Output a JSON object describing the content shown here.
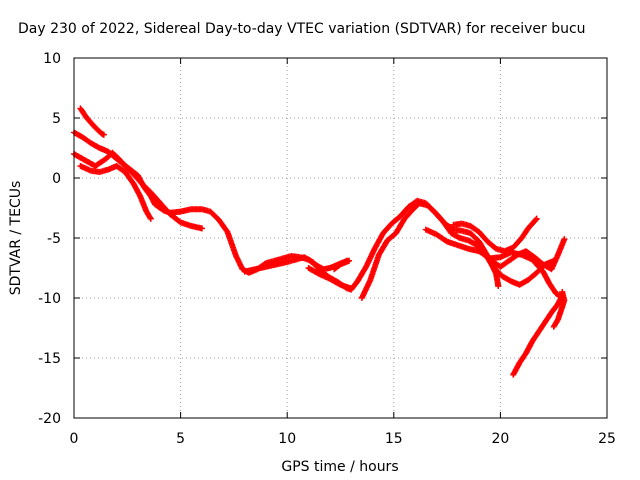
{
  "chart_data": {
    "type": "scatter",
    "title": "Day 230 of 2022, Sidereal Day-to-day VTEC variation (SDTVAR) for receiver bucu",
    "xlabel": "GPS time / hours",
    "ylabel": "SDTVAR / TECUs",
    "xlim": [
      0,
      25
    ],
    "ylim": [
      -20,
      10
    ],
    "xticks": [
      0,
      5,
      10,
      15,
      20,
      25
    ],
    "yticks": [
      10,
      5,
      0,
      -5,
      -10,
      -15,
      -20
    ],
    "grid": true,
    "grid_style": "dotted",
    "marker": "cross",
    "color": "#ff0000",
    "series": [
      {
        "name": "track-1",
        "points": [
          [
            0.3,
            5.8
          ],
          [
            0.6,
            5.0
          ],
          [
            1.0,
            4.2
          ],
          [
            1.3,
            3.7
          ],
          [
            1.4,
            3.6
          ]
        ]
      },
      {
        "name": "track-2",
        "points": [
          [
            0.0,
            3.8
          ],
          [
            0.4,
            3.4
          ],
          [
            0.8,
            2.9
          ],
          [
            1.2,
            2.5
          ],
          [
            1.6,
            2.2
          ],
          [
            2.0,
            1.6
          ],
          [
            2.5,
            0.9
          ],
          [
            3.0,
            0.2
          ],
          [
            3.3,
            -0.8
          ],
          [
            3.6,
            -1.5
          ],
          [
            3.8,
            -2.2
          ],
          [
            4.2,
            -2.7
          ],
          [
            4.5,
            -2.9
          ],
          [
            5.0,
            -2.8
          ],
          [
            5.5,
            -2.6
          ],
          [
            6.0,
            -2.6
          ],
          [
            6.4,
            -2.8
          ],
          [
            6.8,
            -3.5
          ],
          [
            7.2,
            -4.5
          ],
          [
            7.6,
            -6.5
          ],
          [
            7.9,
            -7.6
          ],
          [
            8.2,
            -7.9
          ],
          [
            8.6,
            -7.6
          ],
          [
            9.0,
            -7.1
          ],
          [
            9.4,
            -6.9
          ],
          [
            9.8,
            -6.7
          ],
          [
            10.2,
            -6.5
          ],
          [
            10.6,
            -6.6
          ],
          [
            11.0,
            -6.8
          ],
          [
            11.3,
            -7.2
          ],
          [
            11.7,
            -7.6
          ],
          [
            12.0,
            -7.5
          ],
          [
            12.4,
            -7.2
          ],
          [
            12.8,
            -6.9
          ]
        ]
      },
      {
        "name": "track-3",
        "points": [
          [
            0.0,
            2.0
          ],
          [
            0.5,
            1.5
          ],
          [
            1.0,
            1.0
          ],
          [
            1.5,
            1.6
          ],
          [
            1.8,
            2.1
          ],
          [
            2.1,
            1.6
          ],
          [
            2.4,
            1.0
          ],
          [
            2.8,
            0.3
          ],
          [
            3.2,
            -0.5
          ],
          [
            3.6,
            -1.2
          ],
          [
            4.0,
            -2.0
          ],
          [
            4.5,
            -3.0
          ],
          [
            5.0,
            -3.7
          ],
          [
            5.5,
            -4.0
          ],
          [
            6.0,
            -4.2
          ]
        ]
      },
      {
        "name": "track-4",
        "points": [
          [
            0.3,
            1.0
          ],
          [
            0.8,
            0.6
          ],
          [
            1.2,
            0.5
          ],
          [
            1.6,
            0.7
          ],
          [
            2.0,
            1.0
          ],
          [
            2.4,
            0.5
          ],
          [
            2.8,
            -0.5
          ],
          [
            3.1,
            -1.5
          ],
          [
            3.4,
            -2.8
          ],
          [
            3.6,
            -3.4
          ]
        ]
      },
      {
        "name": "track-5",
        "points": [
          [
            8.0,
            -7.8
          ],
          [
            8.5,
            -7.6
          ],
          [
            9.0,
            -7.4
          ],
          [
            9.5,
            -7.2
          ],
          [
            10.0,
            -7.0
          ],
          [
            10.4,
            -6.8
          ],
          [
            10.8,
            -6.6
          ],
          [
            11.2,
            -7.0
          ],
          [
            11.6,
            -7.8
          ],
          [
            12.0,
            -8.3
          ],
          [
            12.4,
            -8.7
          ],
          [
            12.8,
            -9.2
          ],
          [
            13.0,
            -9.3
          ],
          [
            13.3,
            -8.6
          ],
          [
            13.7,
            -7.4
          ],
          [
            14.1,
            -5.9
          ],
          [
            14.5,
            -4.6
          ],
          [
            14.9,
            -3.8
          ],
          [
            15.3,
            -3.2
          ],
          [
            15.7,
            -2.4
          ],
          [
            16.1,
            -1.9
          ],
          [
            16.5,
            -2.1
          ],
          [
            16.9,
            -2.8
          ],
          [
            17.3,
            -3.6
          ],
          [
            17.7,
            -4.6
          ],
          [
            18.1,
            -5.0
          ],
          [
            18.5,
            -5.2
          ],
          [
            18.9,
            -5.6
          ],
          [
            19.3,
            -6.4
          ],
          [
            19.7,
            -7.5
          ],
          [
            20.1,
            -8.2
          ],
          [
            20.5,
            -8.6
          ],
          [
            20.9,
            -8.9
          ],
          [
            21.3,
            -8.5
          ],
          [
            21.7,
            -7.9
          ],
          [
            22.1,
            -7.2
          ],
          [
            22.5,
            -6.9
          ]
        ]
      },
      {
        "name": "track-6",
        "points": [
          [
            11.0,
            -7.5
          ],
          [
            11.5,
            -8.0
          ],
          [
            12.0,
            -8.4
          ],
          [
            12.5,
            -8.9
          ],
          [
            13.0,
            -9.2
          ]
        ]
      },
      {
        "name": "track-7",
        "points": [
          [
            12.2,
            -7.6
          ],
          [
            12.5,
            -7.2
          ],
          [
            12.9,
            -6.9
          ]
        ]
      },
      {
        "name": "track-8",
        "points": [
          [
            13.5,
            -10.0
          ],
          [
            13.9,
            -8.5
          ],
          [
            14.3,
            -6.4
          ],
          [
            14.7,
            -5.2
          ],
          [
            15.1,
            -4.6
          ],
          [
            15.5,
            -3.4
          ],
          [
            15.9,
            -2.6
          ],
          [
            16.2,
            -2.1
          ],
          [
            16.6,
            -2.3
          ],
          [
            17.0,
            -3.0
          ],
          [
            17.4,
            -3.8
          ],
          [
            17.8,
            -4.3
          ],
          [
            18.2,
            -4.4
          ],
          [
            18.6,
            -4.6
          ],
          [
            19.0,
            -5.3
          ],
          [
            19.4,
            -6.5
          ],
          [
            19.8,
            -8.0
          ],
          [
            19.9,
            -9.0
          ]
        ]
      },
      {
        "name": "track-9",
        "points": [
          [
            16.5,
            -4.3
          ],
          [
            17.0,
            -4.7
          ],
          [
            17.5,
            -5.3
          ],
          [
            18.0,
            -5.6
          ],
          [
            18.5,
            -5.9
          ],
          [
            19.0,
            -6.1
          ],
          [
            19.5,
            -6.7
          ],
          [
            20.0,
            -6.6
          ],
          [
            20.5,
            -6.2
          ],
          [
            21.0,
            -6.4
          ],
          [
            21.5,
            -6.8
          ],
          [
            22.0,
            -7.8
          ],
          [
            22.3,
            -8.8
          ],
          [
            22.6,
            -9.6
          ],
          [
            22.9,
            -10.0
          ]
        ]
      },
      {
        "name": "track-10",
        "points": [
          [
            17.8,
            -3.9
          ],
          [
            18.2,
            -3.8
          ],
          [
            18.6,
            -4.0
          ],
          [
            19.0,
            -4.5
          ],
          [
            19.4,
            -5.3
          ],
          [
            19.8,
            -5.9
          ],
          [
            20.2,
            -6.1
          ],
          [
            20.6,
            -5.8
          ],
          [
            21.0,
            -5.0
          ],
          [
            21.3,
            -4.2
          ],
          [
            21.6,
            -3.6
          ],
          [
            21.7,
            -3.4
          ]
        ]
      },
      {
        "name": "track-11",
        "points": [
          [
            19.6,
            -6.9
          ],
          [
            20.0,
            -7.4
          ],
          [
            20.4,
            -6.9
          ],
          [
            20.8,
            -6.4
          ],
          [
            21.2,
            -6.1
          ],
          [
            21.6,
            -6.6
          ],
          [
            22.0,
            -7.2
          ],
          [
            22.4,
            -7.6
          ],
          [
            22.7,
            -6.4
          ],
          [
            23.0,
            -5.1
          ]
        ]
      },
      {
        "name": "track-12",
        "points": [
          [
            20.6,
            -16.4
          ],
          [
            20.9,
            -15.4
          ],
          [
            21.2,
            -14.6
          ],
          [
            21.5,
            -13.6
          ],
          [
            21.8,
            -12.8
          ],
          [
            22.1,
            -12.0
          ],
          [
            22.4,
            -11.2
          ],
          [
            22.7,
            -10.5
          ],
          [
            22.9,
            -9.8
          ]
        ]
      },
      {
        "name": "track-13",
        "points": [
          [
            22.5,
            -12.4
          ],
          [
            22.7,
            -11.8
          ],
          [
            22.85,
            -11.0
          ],
          [
            23.0,
            -10.2
          ],
          [
            22.9,
            -9.5
          ]
        ]
      }
    ]
  }
}
